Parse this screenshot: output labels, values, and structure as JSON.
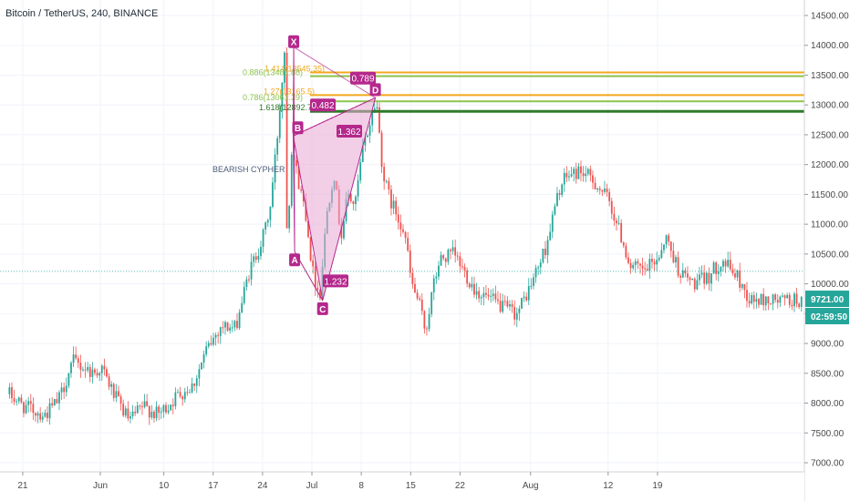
{
  "header": {
    "title": "Bitcoin / TetherUS, 240, BINANCE"
  },
  "pattern": {
    "name": "BEARISH CYPHER",
    "color": "#b5288c",
    "fill": "#e9a7d3",
    "points": [
      {
        "label": "X",
        "x": "Jun 27",
        "y": 13970
      },
      {
        "label": "A",
        "x": "Jun 27",
        "y": 10540
      },
      {
        "label": "B",
        "x": "Jun 29",
        "y": 12480
      },
      {
        "label": "C",
        "x": "Jul 2",
        "y": 9720
      },
      {
        "label": "D",
        "x": "Jul 10",
        "y": 13120
      }
    ],
    "ratios": [
      {
        "text": "0.789",
        "x": "Jul 4",
        "y": 13450
      },
      {
        "text": "0.482",
        "x": "Jun 28",
        "y": 13000
      },
      {
        "text": "1.362",
        "x": "Jul 5",
        "y": 12560
      },
      {
        "text": "1.232",
        "x": "Jun 28",
        "y": 10050
      }
    ]
  },
  "fib_levels": [
    {
      "label": "1.414(13545.35)",
      "price": 13545,
      "color": "#f0a81e"
    },
    {
      "label": "0.886(13481.88)",
      "price": 13482,
      "color": "#8cc44c"
    },
    {
      "label": "1.27(13165.5)",
      "price": 13165,
      "color": "#f0a81e"
    },
    {
      "label": "0.786(13061.39)",
      "price": 13061,
      "color": "#8cc44c"
    },
    {
      "label": "1.618(12892.78)",
      "price": 12893,
      "color": "#2f7a2a"
    }
  ],
  "price_axis": {
    "ticks": [
      "14500.00",
      "14000.00",
      "13500.00",
      "13000.00",
      "12500.00",
      "12000.00",
      "11500.00",
      "11000.00",
      "10500.00",
      "10000.00",
      "9500.00",
      "9000.00",
      "8500.00",
      "8000.00",
      "7500.00",
      "7000.00"
    ],
    "current_price": "9721.00",
    "countdown": "02:59:50",
    "price_color": "#26a69a"
  },
  "time_axis": {
    "ticks": [
      "21",
      "Jun",
      "10",
      "17",
      "24",
      "Jul",
      "8",
      "15",
      "22",
      "Aug",
      "12",
      "19"
    ]
  },
  "chart_data": {
    "type": "candlestick",
    "symbol": "Bitcoin / TetherUS",
    "interval": "240",
    "exchange": "BINANCE",
    "up_color": "#26a69a",
    "down_color": "#ef5350",
    "ylim": [
      6850,
      14900
    ],
    "last_price": 9721,
    "close_path": [
      {
        "x": "May 19",
        "y": 8150
      },
      {
        "x": "May 21",
        "y": 7950
      },
      {
        "x": "May 24",
        "y": 7800
      },
      {
        "x": "May 26",
        "y": 8050
      },
      {
        "x": "May 28",
        "y": 8700
      },
      {
        "x": "May 31",
        "y": 8500
      },
      {
        "x": "Jun 1",
        "y": 8600
      },
      {
        "x": "Jun 3",
        "y": 8100
      },
      {
        "x": "Jun 5",
        "y": 7700
      },
      {
        "x": "Jun 7",
        "y": 7950
      },
      {
        "x": "Jun 9",
        "y": 7800
      },
      {
        "x": "Jun 10",
        "y": 7900
      },
      {
        "x": "Jun 12",
        "y": 8150
      },
      {
        "x": "Jun 14",
        "y": 8300
      },
      {
        "x": "Jun 16",
        "y": 8900
      },
      {
        "x": "Jun 18",
        "y": 9300
      },
      {
        "x": "Jun 20",
        "y": 9250
      },
      {
        "x": "Jun 22",
        "y": 10200
      },
      {
        "x": "Jun 24",
        "y": 10800
      },
      {
        "x": "Jun 25",
        "y": 11300
      },
      {
        "x": "Jun 26",
        "y": 12500
      },
      {
        "x": "Jun 27",
        "y": 13900
      },
      {
        "x": "Jun 27",
        "y": 10600
      },
      {
        "x": "Jun 28",
        "y": 12300
      },
      {
        "x": "Jun 29",
        "y": 11700
      },
      {
        "x": "Jun 30",
        "y": 11200
      },
      {
        "x": "Jul 1",
        "y": 10200
      },
      {
        "x": "Jul 2",
        "y": 9800
      },
      {
        "x": "Jul 3",
        "y": 11200
      },
      {
        "x": "Jul 4",
        "y": 11900
      },
      {
        "x": "Jul 5",
        "y": 10800
      },
      {
        "x": "Jul 6",
        "y": 11500
      },
      {
        "x": "Jul 7",
        "y": 11300
      },
      {
        "x": "Jul 8",
        "y": 12200
      },
      {
        "x": "Jul 10",
        "y": 13100
      },
      {
        "x": "Jul 11",
        "y": 11800
      },
      {
        "x": "Jul 12",
        "y": 11400
      },
      {
        "x": "Jul 14",
        "y": 10900
      },
      {
        "x": "Jul 15",
        "y": 10000
      },
      {
        "x": "Jul 16",
        "y": 9700
      },
      {
        "x": "Jul 17",
        "y": 9200
      },
      {
        "x": "Jul 18",
        "y": 9900
      },
      {
        "x": "Jul 19",
        "y": 10400
      },
      {
        "x": "Jul 21",
        "y": 10500
      },
      {
        "x": "Jul 22",
        "y": 10300
      },
      {
        "x": "Jul 24",
        "y": 9900
      },
      {
        "x": "Jul 26",
        "y": 9750
      },
      {
        "x": "Jul 28",
        "y": 9600
      },
      {
        "x": "Jul 30",
        "y": 9500
      },
      {
        "x": "Aug 1",
        "y": 10000
      },
      {
        "x": "Aug 3",
        "y": 10600
      },
      {
        "x": "Aug 5",
        "y": 11600
      },
      {
        "x": "Aug 6",
        "y": 11800
      },
      {
        "x": "Aug 8",
        "y": 11900
      },
      {
        "x": "Aug 10",
        "y": 11700
      },
      {
        "x": "Aug 12",
        "y": 11400
      },
      {
        "x": "Aug 14",
        "y": 10700
      },
      {
        "x": "Aug 15",
        "y": 10300
      },
      {
        "x": "Aug 17",
        "y": 10200
      },
      {
        "x": "Aug 19",
        "y": 10450
      },
      {
        "x": "Aug 20",
        "y": 10800
      },
      {
        "x": "Aug 22",
        "y": 10200
      },
      {
        "x": "Aug 24",
        "y": 10000
      },
      {
        "x": "Aug 26",
        "y": 10100
      },
      {
        "x": "Aug 28",
        "y": 10400
      },
      {
        "x": "Aug 30",
        "y": 10150
      },
      {
        "x": "Sep 1",
        "y": 9721
      }
    ]
  }
}
